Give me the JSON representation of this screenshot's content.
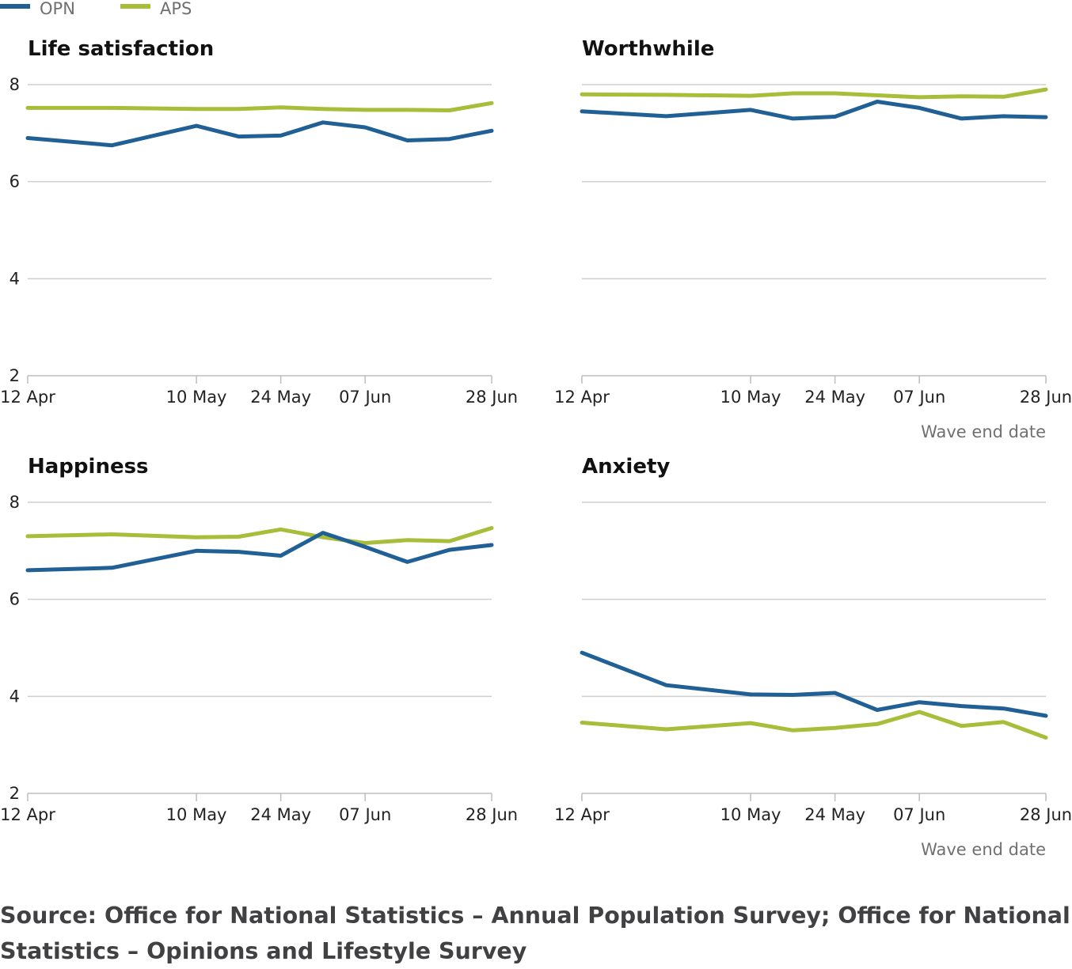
{
  "colors": {
    "OPN": "#206095",
    "APS": "#a8bd3a"
  },
  "legend": [
    "OPN",
    "APS"
  ],
  "x_ticks": [
    "12 Apr",
    "10 May",
    "24 May",
    "07 Jun",
    "28 Jun"
  ],
  "xaxis_title": "Wave end date",
  "source_line1": "Source: Office for National Statistics – Annual Population Survey; Office for National",
  "source_line2": "Statistics – Opinions and Lifestyle Survey",
  "chart_data": [
    {
      "type": "line",
      "title": "Life satisfaction",
      "xlabel": "",
      "ylabel": "",
      "ylim": [
        2,
        8
      ],
      "y_ticks": [
        "2",
        "4",
        "6",
        "8"
      ],
      "x": [
        "12 Apr",
        "26 Apr",
        "10 May",
        "17 May",
        "24 May",
        "31 May",
        "07 Jun",
        "14 Jun",
        "21 Jun",
        "28 Jun"
      ],
      "series": [
        {
          "name": "OPN",
          "values": [
            6.9,
            6.75,
            7.15,
            6.93,
            6.95,
            7.22,
            7.12,
            6.85,
            6.88,
            7.05
          ]
        },
        {
          "name": "APS",
          "values": [
            7.52,
            7.52,
            7.5,
            7.5,
            7.53,
            7.5,
            7.48,
            7.48,
            7.47,
            7.62
          ]
        }
      ]
    },
    {
      "type": "line",
      "title": "Worthwhile",
      "xlabel": "Wave end date",
      "ylabel": "",
      "ylim": [
        2,
        8
      ],
      "y_ticks": [],
      "x": [
        "12 Apr",
        "26 Apr",
        "10 May",
        "17 May",
        "24 May",
        "31 May",
        "07 Jun",
        "14 Jun",
        "21 Jun",
        "28 Jun"
      ],
      "series": [
        {
          "name": "OPN",
          "values": [
            7.45,
            7.35,
            7.48,
            7.3,
            7.34,
            7.65,
            7.52,
            7.3,
            7.35,
            7.33
          ]
        },
        {
          "name": "APS",
          "values": [
            7.8,
            7.79,
            7.77,
            7.82,
            7.82,
            7.78,
            7.74,
            7.76,
            7.75,
            7.9
          ]
        }
      ]
    },
    {
      "type": "line",
      "title": "Happiness",
      "xlabel": "",
      "ylabel": "",
      "ylim": [
        2,
        8
      ],
      "y_ticks": [
        "2",
        "4",
        "6",
        "8"
      ],
      "x": [
        "12 Apr",
        "26 Apr",
        "10 May",
        "17 May",
        "24 May",
        "31 May",
        "07 Jun",
        "14 Jun",
        "21 Jun",
        "28 Jun"
      ],
      "series": [
        {
          "name": "OPN",
          "values": [
            6.6,
            6.65,
            7.0,
            6.98,
            6.9,
            7.37,
            7.08,
            6.77,
            7.02,
            7.12
          ]
        },
        {
          "name": "APS",
          "values": [
            7.3,
            7.34,
            7.28,
            7.29,
            7.44,
            7.28,
            7.16,
            7.22,
            7.2,
            7.47
          ]
        }
      ]
    },
    {
      "type": "line",
      "title": "Anxiety",
      "xlabel": "Wave end date",
      "ylabel": "",
      "ylim": [
        2,
        8
      ],
      "y_ticks": [],
      "x": [
        "12 Apr",
        "26 Apr",
        "10 May",
        "17 May",
        "24 May",
        "31 May",
        "07 Jun",
        "14 Jun",
        "21 Jun",
        "28 Jun"
      ],
      "series": [
        {
          "name": "OPN",
          "values": [
            4.9,
            4.23,
            4.04,
            4.03,
            4.07,
            3.72,
            3.88,
            3.8,
            3.75,
            3.6
          ]
        },
        {
          "name": "APS",
          "values": [
            3.46,
            3.32,
            3.45,
            3.3,
            3.35,
            3.43,
            3.68,
            3.39,
            3.47,
            3.15
          ]
        }
      ]
    }
  ]
}
